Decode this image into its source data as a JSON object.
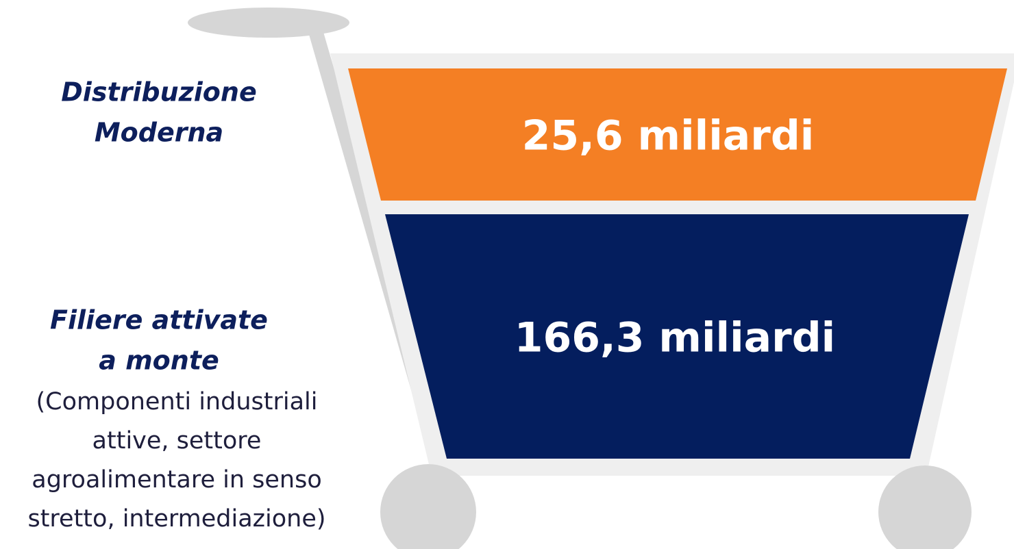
{
  "segments": [
    {
      "label_lines": [
        "Distribuzione",
        "Moderna"
      ],
      "description_lines": [],
      "value": "25,6 miliardi"
    },
    {
      "label_lines": [
        "Filiere attivate",
        "a monte"
      ],
      "description_lines": [
        "(Componenti industriali",
        "attive, settore",
        "agroalimentare in senso",
        "stretto, intermediazione)"
      ],
      "value": "166,3 miliardi"
    }
  ]
}
